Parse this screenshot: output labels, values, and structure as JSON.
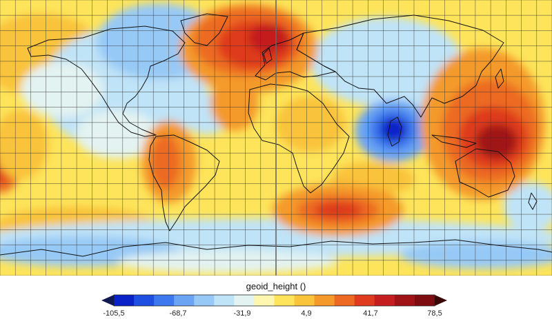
{
  "legend": {
    "title": "geoid_height ()",
    "tick_labels": [
      "-105,5",
      "-68,7",
      "-31,9",
      "4,9",
      "41,7",
      "78,5"
    ],
    "range": [
      -105.5,
      78.5
    ],
    "colors": [
      "#0a23c8",
      "#1f4fe0",
      "#3e78ee",
      "#6aa4f3",
      "#97c9f6",
      "#bfe3f7",
      "#e3f3f1",
      "#fff7b0",
      "#fde45a",
      "#f9c33a",
      "#f49a2a",
      "#ec6a22",
      "#de3b1f",
      "#c41f1e",
      "#a01418",
      "#7e0d12"
    ],
    "arrow_low_color": "#101a50",
    "arrow_high_color": "#3a0606"
  },
  "map": {
    "grid": "on",
    "graticule_spacing_deg": 10,
    "ocean_base_color": "#fde45a"
  }
}
